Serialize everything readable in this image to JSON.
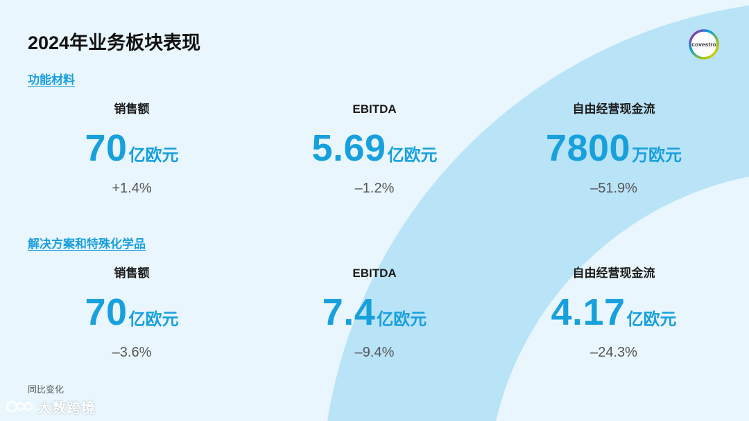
{
  "page": {
    "title": "2024年业务板块表现",
    "footnote": "同比变化",
    "watermark": "大数跨境",
    "logo_text": "covestro"
  },
  "colors": {
    "accent": "#18a0dd",
    "background": "#e9f6fd",
    "arc": "#b9e3f7"
  },
  "sections": [
    {
      "title": "功能材料",
      "metrics": [
        {
          "label": "销售额",
          "value": "70",
          "unit": "亿欧元",
          "change": "+1.4%"
        },
        {
          "label": "EBITDA",
          "value": "5.69",
          "unit": "亿欧元",
          "change": "–1.2%"
        },
        {
          "label": "自由经营现金流",
          "value": "7800",
          "unit": "万欧元",
          "change": "–51.9%"
        }
      ]
    },
    {
      "title": "解决方案和特殊化学品",
      "metrics": [
        {
          "label": "销售额",
          "value": "70",
          "unit": "亿欧元",
          "change": "–3.6%"
        },
        {
          "label": "EBITDA",
          "value": "7.4",
          "unit": "亿欧元",
          "change": "–9.4%"
        },
        {
          "label": "自由经营现金流",
          "value": "4.17",
          "unit": "亿欧元",
          "change": "–24.3%"
        }
      ]
    }
  ]
}
